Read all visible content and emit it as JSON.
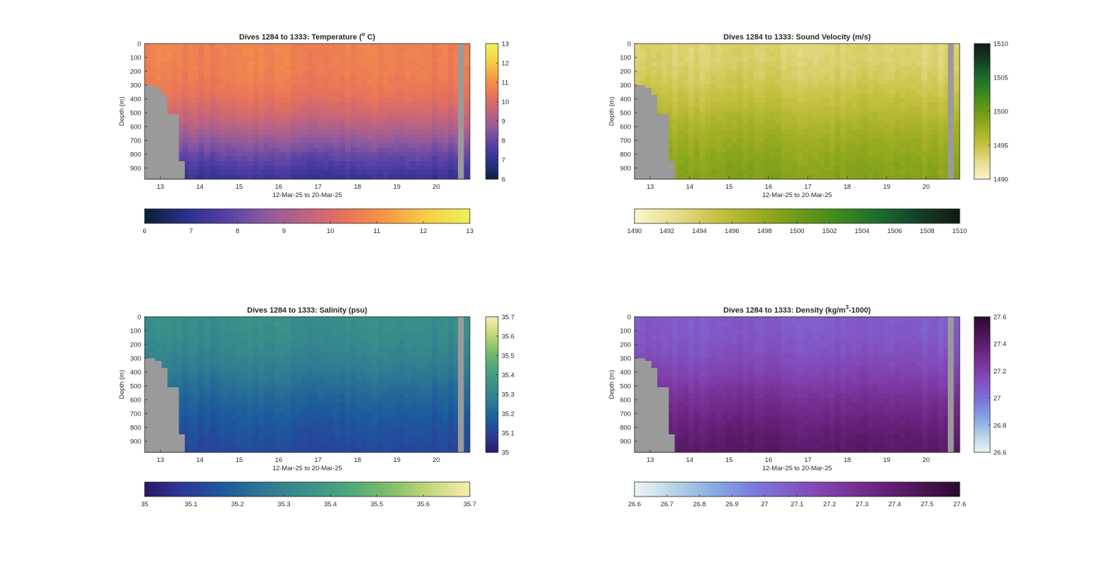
{
  "figure": {
    "background": "#ffffff",
    "land_color": "#9a9a9a"
  },
  "chart_data": [
    {
      "type": "heatmap",
      "id": "temperature",
      "title_text": "Dives 1284 to 1333: Temperature (",
      "title_sup": "o",
      "title_tail": " C)",
      "xlabel": "12-Mar-25 to 20-Mar-25",
      "ylabel": "Depth (m)",
      "xlim": [
        12.6,
        20.85
      ],
      "xticks": [
        13,
        14,
        15,
        16,
        17,
        18,
        19,
        20
      ],
      "ylim": [
        0,
        980
      ],
      "yticks": [
        0,
        100,
        200,
        300,
        400,
        500,
        600,
        700,
        800,
        900
      ],
      "clim": [
        6,
        13
      ],
      "colorbar_ticks": [
        6,
        7,
        8,
        9,
        10,
        11,
        12,
        13
      ],
      "hbar_ticks": [
        6,
        7,
        8,
        9,
        10,
        11,
        12,
        13
      ],
      "colormap": [
        "#0b1f33",
        "#2a2f8a",
        "#5540a6",
        "#8e5a9e",
        "#c0647f",
        "#e97458",
        "#f79b45",
        "#f7d046",
        "#ecf25c"
      ],
      "profile": {
        "surface": 10.7,
        "deep": 6.4,
        "decay_depth": 820,
        "sharpness": 3.0
      },
      "bottom_depth_m": [
        300,
        300,
        320,
        370,
        510,
        850,
        980
      ],
      "bottom_time_day": [
        12.6,
        12.72,
        12.87,
        13.03,
        13.18,
        13.47,
        13.62
      ],
      "gap_day": [
        20.55,
        20.7
      ]
    },
    {
      "type": "heatmap",
      "id": "sound_velocity",
      "title_text": "Dives 1284 to 1333: Sound Velocity (m/s)",
      "xlabel": "12-Mar-25 to 20-Mar-25",
      "ylabel": "Depth (m)",
      "xlim": [
        12.6,
        20.85
      ],
      "xticks": [
        13,
        14,
        15,
        16,
        17,
        18,
        19,
        20
      ],
      "ylim": [
        0,
        980
      ],
      "yticks": [
        0,
        100,
        200,
        300,
        400,
        500,
        600,
        700,
        800,
        900
      ],
      "clim": [
        1490,
        1510
      ],
      "colorbar_ticks": [
        1490,
        1495,
        1500,
        1505,
        1510
      ],
      "hbar_ticks": [
        1490,
        1492,
        1494,
        1496,
        1498,
        1500,
        1502,
        1504,
        1506,
        1508,
        1510
      ],
      "colormap": [
        "#fbf5c8",
        "#e7dd8f",
        "#c9c244",
        "#9fae22",
        "#6f9a17",
        "#3f8a1c",
        "#1b6e2d",
        "#143f26",
        "#101a14"
      ],
      "profile": {
        "surface": 1493.5,
        "deep": 1499.5,
        "decay_depth": 650,
        "sharpness": 2.2
      },
      "bottom_depth_m": [
        300,
        300,
        320,
        370,
        510,
        850,
        980
      ],
      "bottom_time_day": [
        12.6,
        12.72,
        12.87,
        13.03,
        13.18,
        13.47,
        13.62
      ],
      "gap_day": [
        20.55,
        20.7
      ]
    },
    {
      "type": "heatmap",
      "id": "salinity",
      "title_text": "Dives 1284 to 1333: Salinity (psu)",
      "xlabel": "12-Mar-25 to 20-Mar-25",
      "ylabel": "Depth (m)",
      "xlim": [
        12.6,
        20.85
      ],
      "xticks": [
        13,
        14,
        15,
        16,
        17,
        18,
        19,
        20
      ],
      "ylim": [
        0,
        980
      ],
      "yticks": [
        0,
        100,
        200,
        300,
        400,
        500,
        600,
        700,
        800,
        900
      ],
      "clim": [
        35,
        35.7
      ],
      "colorbar_ticks": [
        35,
        35.1,
        35.2,
        35.3,
        35.4,
        35.5,
        35.6,
        35.7
      ],
      "hbar_ticks": [
        35,
        35.1,
        35.2,
        35.3,
        35.4,
        35.5,
        35.6,
        35.7
      ],
      "colormap": [
        "#2a1866",
        "#2d3a99",
        "#1b5c9c",
        "#2e7a93",
        "#3a9189",
        "#4ca67c",
        "#7fbd67",
        "#c3d87a",
        "#f8ecb0"
      ],
      "profile": {
        "surface": 35.34,
        "deep": 35.1,
        "decay_depth": 650,
        "sharpness": 2.0
      },
      "bottom_depth_m": [
        300,
        300,
        320,
        370,
        510,
        850,
        980
      ],
      "bottom_time_day": [
        12.6,
        12.72,
        12.87,
        13.03,
        13.18,
        13.47,
        13.62
      ],
      "gap_day": [
        20.55,
        20.7
      ]
    },
    {
      "type": "heatmap",
      "id": "density",
      "title_text": "Dives 1284 to 1333: Density (kg/m",
      "title_sup": "3",
      "title_tail": "-1000)",
      "xlabel": "12-Mar-25 to 20-Mar-25",
      "ylabel": "Depth (m)",
      "xlim": [
        12.6,
        20.85
      ],
      "xticks": [
        13,
        14,
        15,
        16,
        17,
        18,
        19,
        20
      ],
      "ylim": [
        0,
        980
      ],
      "yticks": [
        0,
        100,
        200,
        300,
        400,
        500,
        600,
        700,
        800,
        900
      ],
      "clim": [
        26.6,
        27.6
      ],
      "colorbar_ticks": [
        26.6,
        26.8,
        27,
        27.2,
        27.4,
        27.6
      ],
      "colorbar_tick_labels": [
        "26.6",
        "26.8",
        "27",
        "27.2",
        "27.4",
        "27.6"
      ],
      "hbar_ticks": [
        26.6,
        26.7,
        26.8,
        26.9,
        27,
        27.1,
        27.2,
        27.3,
        27.4,
        27.5,
        27.6
      ],
      "hbar_tick_labels": [
        "26.6",
        "26.7",
        "26.8",
        "26.9",
        "27",
        "27.1",
        "27.2",
        "27.3",
        "27.4",
        "27.5",
        "27.6"
      ],
      "colormap": [
        "#eef5f6",
        "#b6d3e6",
        "#86a9e4",
        "#7b78dc",
        "#8256c4",
        "#7e3aa4",
        "#6a237f",
        "#4c1556",
        "#2c0a2e"
      ],
      "profile": {
        "surface": 27.08,
        "deep": 27.48,
        "decay_depth": 700,
        "sharpness": 2.2
      },
      "bottom_depth_m": [
        300,
        300,
        320,
        370,
        510,
        850,
        980
      ],
      "bottom_time_day": [
        12.6,
        12.72,
        12.87,
        13.03,
        13.18,
        13.47,
        13.62
      ],
      "gap_day": [
        20.55,
        20.7
      ]
    }
  ]
}
